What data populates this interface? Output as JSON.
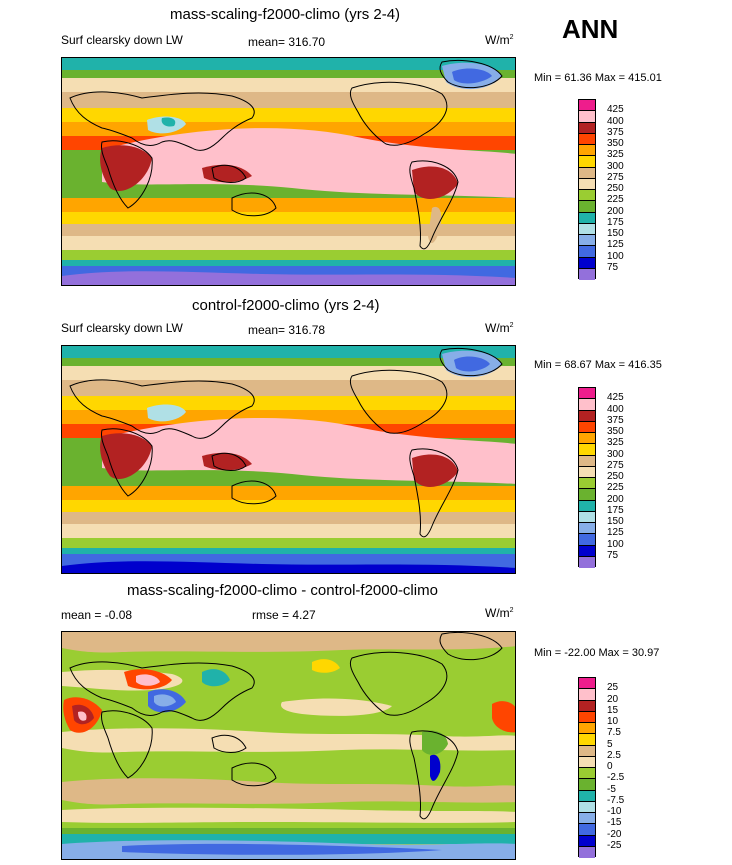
{
  "season": "ANN",
  "panels": [
    {
      "title": "mass-scaling-f2000-climo (yrs 2-4)",
      "left_label": "Surf clearsky down LW",
      "mean_label": "mean= 316.70",
      "rmse_label": "",
      "units_base": "W/m",
      "units_sup": "2",
      "minmax": "Min = 61.36 Max = 415.01",
      "levels": [
        "425",
        "400",
        "375",
        "350",
        "325",
        "300",
        "275",
        "250",
        "225",
        "200",
        "175",
        "150",
        "125",
        "100",
        "75"
      ],
      "colors": [
        "#ee1d8c",
        "#ffc0cb",
        "#b22222",
        "#ff4500",
        "#ffa500",
        "#ffd700",
        "#deb887",
        "#f5deb3",
        "#9acd32",
        "#6ab22f",
        "#20b2aa",
        "#b0e0e6",
        "#87aee8",
        "#4169e1",
        "#0000cd",
        "#9370db"
      ]
    },
    {
      "title": "control-f2000-climo (yrs 2-4)",
      "left_label": "Surf clearsky down LW",
      "mean_label": "mean= 316.78",
      "rmse_label": "",
      "units_base": "W/m",
      "units_sup": "2",
      "minmax": "Min = 68.67 Max = 416.35",
      "levels": [
        "425",
        "400",
        "375",
        "350",
        "325",
        "300",
        "275",
        "250",
        "225",
        "200",
        "175",
        "150",
        "125",
        "100",
        "75"
      ],
      "colors": [
        "#ee1d8c",
        "#ffc0cb",
        "#b22222",
        "#ff4500",
        "#ffa500",
        "#ffd700",
        "#deb887",
        "#f5deb3",
        "#9acd32",
        "#6ab22f",
        "#20b2aa",
        "#b0e0e6",
        "#87aee8",
        "#4169e1",
        "#0000cd",
        "#9370db"
      ]
    },
    {
      "title": "mass-scaling-f2000-climo - control-f2000-climo",
      "left_label": "mean = -0.08",
      "mean_label": "",
      "rmse_label": "rmse = 4.27",
      "units_base": "W/m",
      "units_sup": "2",
      "minmax": "Min = -22.00 Max = 30.97",
      "levels": [
        "25",
        "20",
        "15",
        "10",
        "7.5",
        "5",
        "2.5",
        "0",
        "-2.5",
        "-5",
        "-7.5",
        "-10",
        "-15",
        "-20",
        "-25"
      ],
      "colors": [
        "#ee1d8c",
        "#ffc0cb",
        "#b22222",
        "#ff4500",
        "#ffa500",
        "#ffd700",
        "#deb887",
        "#f5deb3",
        "#9acd32",
        "#6ab22f",
        "#20b2aa",
        "#b0e0e6",
        "#87aee8",
        "#4169e1",
        "#0000cd",
        "#9370db"
      ]
    }
  ],
  "chart_data": [
    {
      "type": "heatmap",
      "title": "mass-scaling-f2000-climo (yrs 2-4)",
      "variable": "Surf clearsky down LW",
      "units": "W/m2",
      "mean": 316.7,
      "min": 61.36,
      "max": 415.01,
      "contour_levels": [
        75,
        100,
        125,
        150,
        175,
        200,
        225,
        250,
        275,
        300,
        325,
        350,
        375,
        400,
        425
      ]
    },
    {
      "type": "heatmap",
      "title": "control-f2000-climo (yrs 2-4)",
      "variable": "Surf clearsky down LW",
      "units": "W/m2",
      "mean": 316.78,
      "min": 68.67,
      "max": 416.35,
      "contour_levels": [
        75,
        100,
        125,
        150,
        175,
        200,
        225,
        250,
        275,
        300,
        325,
        350,
        375,
        400,
        425
      ]
    },
    {
      "type": "heatmap",
      "title": "mass-scaling-f2000-climo - control-f2000-climo",
      "units": "W/m2",
      "mean": -0.08,
      "rmse": 4.27,
      "min": -22.0,
      "max": 30.97,
      "contour_levels": [
        -25,
        -20,
        -15,
        -10,
        -7.5,
        -5,
        -2.5,
        0,
        2.5,
        5,
        7.5,
        10,
        15,
        20,
        25
      ]
    }
  ]
}
